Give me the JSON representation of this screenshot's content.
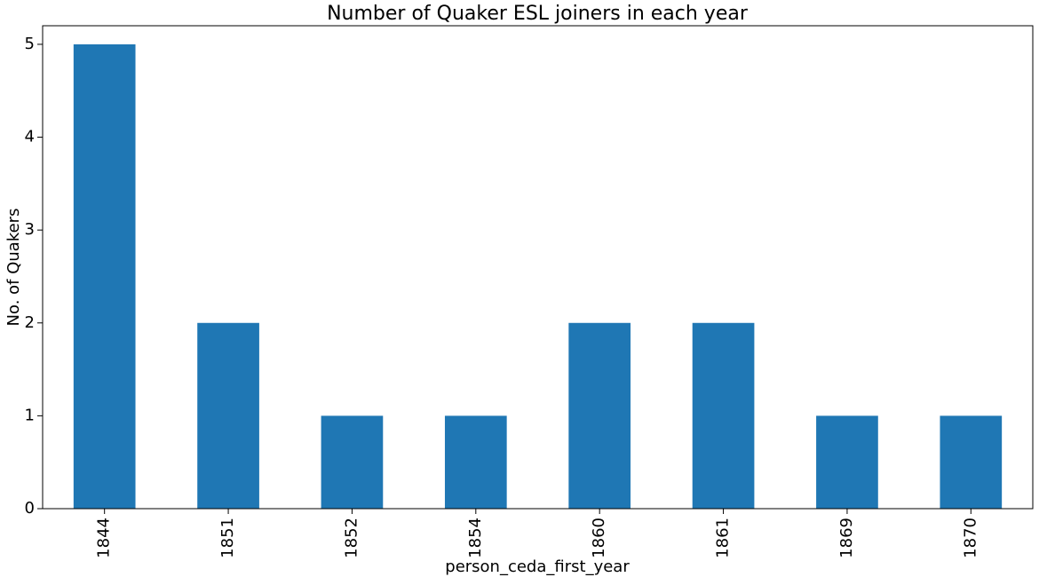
{
  "chart_data": {
    "type": "bar",
    "title": "Number of Quaker ESL joiners in each year",
    "xlabel": "person_ceda_first_year",
    "ylabel": "No. of Quakers",
    "categories": [
      "1844",
      "1851",
      "1852",
      "1854",
      "1860",
      "1861",
      "1869",
      "1870"
    ],
    "values": [
      5,
      2,
      1,
      1,
      2,
      2,
      1,
      1
    ],
    "ylim": [
      0,
      5.2
    ],
    "yticks": [
      0,
      1,
      2,
      3,
      4,
      5
    ],
    "grid": false,
    "legend": "none",
    "bar_color": "#1f77b4"
  }
}
